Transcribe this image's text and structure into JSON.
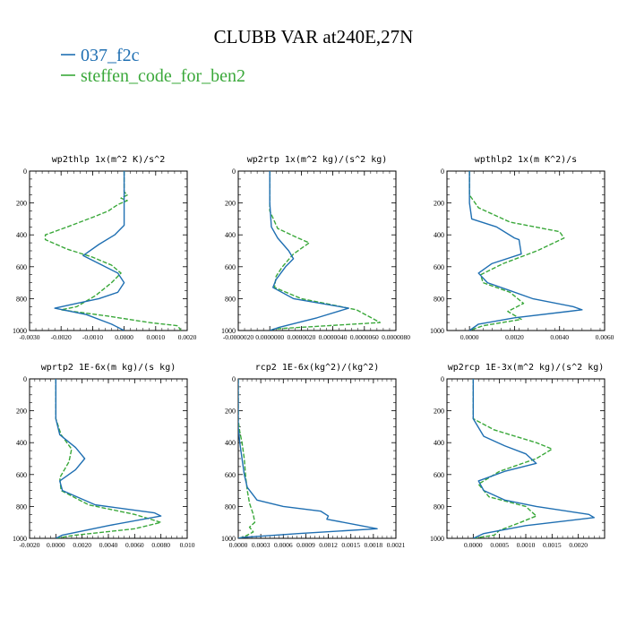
{
  "figure_title": "CLUBB VAR at240E,27N",
  "legend": [
    {
      "label": "037_f2c",
      "color": "#1f6fb2",
      "dash": "solid"
    },
    {
      "label": "steffen_code_for_ben2",
      "color": "#3aa83a",
      "dash": "dashed"
    }
  ],
  "chart_data": [
    {
      "type": "line",
      "title": "wp2thlp   1x(m^2 K)/s^2",
      "xlim": [
        -0.003,
        0.002
      ],
      "ylim": [
        1000,
        0
      ],
      "xticks": [
        -0.003,
        -0.002,
        -0.001,
        0.0,
        0.001,
        0.002
      ],
      "xtick_labels": [
        "-0.0030",
        "-0.0020",
        "-0.0010",
        "0.0000",
        "0.0010",
        "0.0020"
      ],
      "yticks": [
        0,
        200,
        400,
        600,
        800,
        1000
      ],
      "ytick_labels": [
        "0",
        "200",
        "400",
        "600",
        "800",
        "1000"
      ],
      "series": [
        {
          "name": "037_f2c",
          "points": [
            [
              0,
              0
            ],
            [
              0,
              250
            ],
            [
              0,
              340
            ],
            [
              -0.0003,
              400
            ],
            [
              -0.0008,
              460
            ],
            [
              -0.0013,
              530
            ],
            [
              -0.0007,
              590
            ],
            [
              -0.0002,
              640
            ],
            [
              0.0,
              700
            ],
            [
              -0.0002,
              760
            ],
            [
              -0.0008,
              800
            ],
            [
              -0.0015,
              830
            ],
            [
              -0.0022,
              860
            ],
            [
              -0.0012,
              900
            ],
            [
              -0.0004,
              960
            ],
            [
              0,
              1000
            ]
          ]
        },
        {
          "name": "steffen_code_for_ben2",
          "points": [
            [
              0,
              0
            ],
            [
              0,
              130
            ],
            [
              0.0001,
              150
            ],
            [
              -0.0001,
              170
            ],
            [
              0.0001,
              185
            ],
            [
              -0.0002,
              210
            ],
            [
              -0.0005,
              250
            ],
            [
              -0.001,
              290
            ],
            [
              -0.0018,
              350
            ],
            [
              -0.0025,
              400
            ],
            [
              -0.0025,
              430
            ],
            [
              -0.0018,
              490
            ],
            [
              -0.001,
              540
            ],
            [
              -0.0004,
              590
            ],
            [
              -0.0001,
              640
            ],
            [
              -0.0004,
              700
            ],
            [
              -0.0009,
              780
            ],
            [
              -0.0015,
              850
            ],
            [
              -0.002,
              870
            ],
            [
              -0.0005,
              910
            ],
            [
              0.0008,
              950
            ],
            [
              0.0017,
              970
            ],
            [
              0.0018,
              1000
            ]
          ]
        }
      ]
    },
    {
      "type": "line",
      "title": "wp2rtp   1x(m^2 kg)/(s^2 kg)",
      "xlim": [
        -2e-06,
        8e-06
      ],
      "ylim": [
        1000,
        0
      ],
      "xticks": [
        -2e-06,
        0.0,
        2e-06,
        4e-06,
        6e-06,
        8e-06
      ],
      "xtick_labels": [
        "-0.0000020",
        "0.0000000",
        "0.0000020",
        "0.0000040",
        "0.0000060",
        "0.0000080"
      ],
      "yticks": [
        0,
        200,
        400,
        600,
        800,
        1000
      ],
      "ytick_labels": [
        "0",
        "200",
        "400",
        "600",
        "800",
        "1000"
      ],
      "series": [
        {
          "name": "037_f2c",
          "points": [
            [
              0,
              0
            ],
            [
              0,
              200
            ],
            [
              1e-07,
              350
            ],
            [
              5e-07,
              420
            ],
            [
              1.2e-06,
              500
            ],
            [
              1.5e-06,
              550
            ],
            [
              1e-06,
              600
            ],
            [
              4e-07,
              680
            ],
            [
              2e-07,
              730
            ],
            [
              1.5e-06,
              800
            ],
            [
              5e-06,
              860
            ],
            [
              3e-06,
              920
            ],
            [
              6e-07,
              980
            ],
            [
              0,
              1000
            ]
          ]
        },
        {
          "name": "steffen_code_for_ben2",
          "points": [
            [
              0,
              0
            ],
            [
              0,
              250
            ],
            [
              5e-07,
              360
            ],
            [
              1.8e-06,
              420
            ],
            [
              2.5e-06,
              450
            ],
            [
              1.5e-06,
              520
            ],
            [
              8e-07,
              600
            ],
            [
              4e-07,
              660
            ],
            [
              3e-07,
              730
            ],
            [
              2e-06,
              800
            ],
            [
              5.5e-06,
              870
            ],
            [
              7e-06,
              950
            ],
            [
              3e-07,
              990
            ],
            [
              0,
              1000
            ]
          ]
        }
      ]
    },
    {
      "type": "line",
      "title": "wpthlp2   1x(m K^2)/s",
      "xlim": [
        -0.001,
        0.006
      ],
      "ylim": [
        1000,
        0
      ],
      "xticks": [
        0.0,
        0.002,
        0.004,
        0.006
      ],
      "xtick_labels": [
        "0.0000",
        "0.0020",
        "0.0040",
        "0.0060"
      ],
      "yticks": [
        0,
        200,
        400,
        600,
        800,
        1000
      ],
      "ytick_labels": [
        "0",
        "200",
        "400",
        "600",
        "800",
        "1000"
      ],
      "series": [
        {
          "name": "037_f2c",
          "points": [
            [
              0,
              0
            ],
            [
              0,
              200
            ],
            [
              0.0001,
              300
            ],
            [
              0.0012,
              350
            ],
            [
              0.002,
              420
            ],
            [
              0.0022,
              430
            ],
            [
              0.0023,
              520
            ],
            [
              0.001,
              580
            ],
            [
              0.0004,
              640
            ],
            [
              0.0008,
              700
            ],
            [
              0.0016,
              740
            ],
            [
              0.0028,
              800
            ],
            [
              0.0046,
              850
            ],
            [
              0.005,
              870
            ],
            [
              0.002,
              920
            ],
            [
              0.0004,
              960
            ],
            [
              0,
              1000
            ]
          ]
        },
        {
          "name": "steffen_code_for_ben2",
          "points": [
            [
              0,
              0
            ],
            [
              0,
              150
            ],
            [
              0.0004,
              230
            ],
            [
              0.0018,
              320
            ],
            [
              0.004,
              380
            ],
            [
              0.0042,
              420
            ],
            [
              0.003,
              500
            ],
            [
              0.0015,
              580
            ],
            [
              0.0005,
              650
            ],
            [
              0.0006,
              700
            ],
            [
              0.0018,
              760
            ],
            [
              0.0024,
              830
            ],
            [
              0.0017,
              880
            ],
            [
              0.0023,
              930
            ],
            [
              0.0006,
              970
            ],
            [
              0,
              1000
            ]
          ]
        }
      ]
    },
    {
      "type": "line",
      "title": "wprtp2   1E-6x(m kg)/(s kg)",
      "xlim": [
        -0.002,
        0.01
      ],
      "ylim": [
        1000,
        0
      ],
      "xticks": [
        -0.002,
        0.0,
        0.002,
        0.004,
        0.006,
        0.008,
        0.01
      ],
      "xtick_labels": [
        "-0.0020",
        "0.0000",
        "0.0020",
        "0.0040",
        "0.0060",
        "0.0080",
        "0.010"
      ],
      "yticks": [
        0,
        200,
        400,
        600,
        800,
        1000
      ],
      "ytick_labels": [
        "0",
        "200",
        "400",
        "600",
        "800",
        "1000"
      ],
      "series": [
        {
          "name": "037_f2c",
          "points": [
            [
              0,
              0
            ],
            [
              0,
              250
            ],
            [
              0.0003,
              350
            ],
            [
              0.0015,
              430
            ],
            [
              0.0022,
              500
            ],
            [
              0.0015,
              570
            ],
            [
              0.0003,
              640
            ],
            [
              0.0005,
              700
            ],
            [
              0.003,
              790
            ],
            [
              0.0075,
              840
            ],
            [
              0.008,
              860
            ],
            [
              0.004,
              920
            ],
            [
              0.0005,
              980
            ],
            [
              0,
              1000
            ]
          ]
        },
        {
          "name": "steffen_code_for_ben2",
          "points": [
            [
              0,
              0
            ],
            [
              0,
              250
            ],
            [
              0.0004,
              350
            ],
            [
              0.0012,
              440
            ],
            [
              0.001,
              520
            ],
            [
              0.0003,
              620
            ],
            [
              0.0004,
              700
            ],
            [
              0.0025,
              790
            ],
            [
              0.006,
              850
            ],
            [
              0.008,
              900
            ],
            [
              0.006,
              940
            ],
            [
              0.0015,
              980
            ],
            [
              0,
              1000
            ]
          ]
        }
      ]
    },
    {
      "type": "line",
      "title": "rcp2   1E-6x(kg^2)/(kg^2)",
      "xlim": [
        0.0,
        0.0021
      ],
      "ylim": [
        1000,
        0
      ],
      "xticks": [
        0.0,
        0.0003,
        0.0006,
        0.0009,
        0.0012,
        0.0015,
        0.0018,
        0.0021
      ],
      "xtick_labels": [
        "0.0000",
        "0.0003",
        "0.0006",
        "0.0009",
        "0.0012",
        "0.0015",
        "0.0018",
        "0.0021"
      ],
      "yticks": [
        0,
        200,
        400,
        600,
        800,
        1000
      ],
      "ytick_labels": [
        "0",
        "200",
        "400",
        "600",
        "800",
        "1000"
      ],
      "series": [
        {
          "name": "037_f2c",
          "points": [
            [
              0,
              0
            ],
            [
              0,
              300
            ],
            [
              2e-05,
              400
            ],
            [
              5e-05,
              500
            ],
            [
              8e-05,
              600
            ],
            [
              0.00012,
              680
            ],
            [
              0.00025,
              760
            ],
            [
              0.0006,
              800
            ],
            [
              0.0011,
              830
            ],
            [
              0.0012,
              860
            ],
            [
              0.00118,
              880
            ],
            [
              0.00185,
              940
            ],
            [
              0.0008,
              970
            ],
            [
              5e-05,
              995
            ],
            [
              0,
              1000
            ]
          ]
        },
        {
          "name": "steffen_code_for_ben2",
          "points": [
            [
              0,
              0
            ],
            [
              0,
              260
            ],
            [
              2e-05,
              330
            ],
            [
              5e-05,
              400
            ],
            [
              8e-05,
              500
            ],
            [
              0.0001,
              620
            ],
            [
              0.00012,
              700
            ],
            [
              0.00015,
              780
            ],
            [
              0.0002,
              850
            ],
            [
              0.00022,
              900
            ],
            [
              0.00015,
              930
            ],
            [
              0.0002,
              960
            ],
            [
              8e-05,
              990
            ],
            [
              0,
              1000
            ]
          ]
        }
      ]
    },
    {
      "type": "line",
      "title": "wp2rcp   1E-3x(m^2 kg)/(s^2 kg)",
      "xlim": [
        -0.0005,
        0.0025
      ],
      "ylim": [
        1000,
        0
      ],
      "xticks": [
        0.0,
        0.0005,
        0.001,
        0.0015,
        0.002
      ],
      "xtick_labels": [
        "0.0000",
        "0.0005",
        "0.0010",
        "0.0015",
        "0.0020"
      ],
      "yticks": [
        0,
        200,
        400,
        600,
        800,
        1000
      ],
      "ytick_labels": [
        "0",
        "200",
        "400",
        "600",
        "800",
        "1000"
      ],
      "series": [
        {
          "name": "037_f2c",
          "points": [
            [
              0,
              0
            ],
            [
              0,
              250
            ],
            [
              0.0002,
              360
            ],
            [
              0.0006,
              420
            ],
            [
              0.001,
              470
            ],
            [
              0.0012,
              530
            ],
            [
              0.0006,
              580
            ],
            [
              0.0001,
              640
            ],
            [
              0.0002,
              700
            ],
            [
              0.0006,
              760
            ],
            [
              0.0012,
              800
            ],
            [
              0.0022,
              850
            ],
            [
              0.0023,
              870
            ],
            [
              0.001,
              920
            ],
            [
              0.0002,
              970
            ],
            [
              0,
              1000
            ]
          ]
        },
        {
          "name": "steffen_code_for_ben2",
          "points": [
            [
              0,
              0
            ],
            [
              0,
              250
            ],
            [
              0.0004,
              320
            ],
            [
              0.0012,
              400
            ],
            [
              0.0015,
              440
            ],
            [
              0.0012,
              500
            ],
            [
              0.0005,
              580
            ],
            [
              0.0001,
              660
            ],
            [
              0.0003,
              740
            ],
            [
              0.001,
              800
            ],
            [
              0.0012,
              860
            ],
            [
              0.0009,
              900
            ],
            [
              0.0005,
              950
            ],
            [
              0.0004,
              980
            ],
            [
              0,
              1000
            ]
          ]
        }
      ]
    }
  ]
}
